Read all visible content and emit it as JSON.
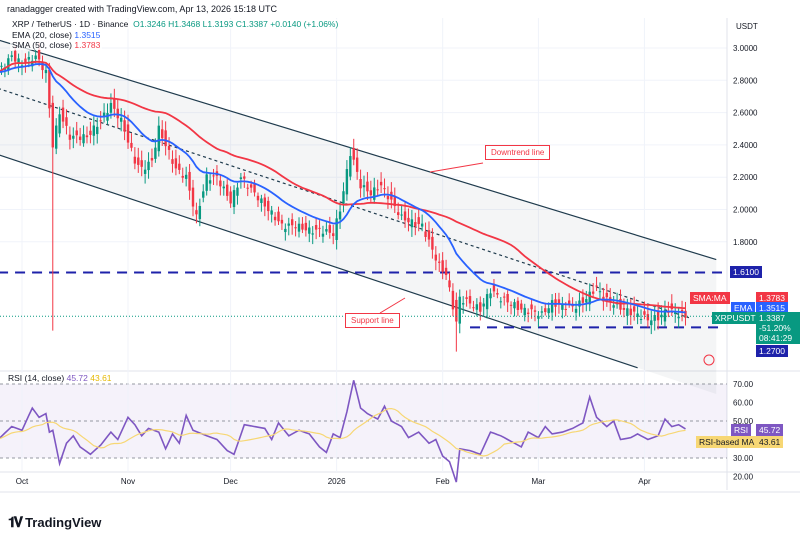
{
  "header": {
    "credit": "ranadagger created with TradingView.com, Apr 13, 2026 15:18 UTC",
    "symbol": "XRP / TetherUS · 1D · Binance",
    "o": "O1.3246",
    "h": "H1.3468",
    "l": "L1.3193",
    "c": "C1.3387",
    "chg": "+0.0140 (+1.06%)",
    "ema_label": "EMA (20, close)",
    "ema_val": "1.3515",
    "sma_label": "SMA (50, close)",
    "sma_val": "1.3783"
  },
  "axis": {
    "currency": "USDT",
    "price_ticks": [
      "3.0000",
      "2.8000",
      "2.6000",
      "2.4000",
      "2.2000",
      "2.0000",
      "1.8000"
    ],
    "rsi_ticks": [
      "70.00",
      "60.00",
      "50.00",
      "40.00",
      "30.00",
      "20.00"
    ],
    "months": [
      {
        "date": "2025-10-01",
        "label": "Oct"
      },
      {
        "date": "2025-11-01",
        "label": "Nov"
      },
      {
        "date": "2025-12-01",
        "label": "Dec"
      },
      {
        "date": "2026-01-01",
        "label": "2026"
      },
      {
        "date": "2026-02-01",
        "label": "Feb"
      },
      {
        "date": "2026-03-01",
        "label": "Mar"
      },
      {
        "date": "2026-04-01",
        "label": "Apr"
      }
    ]
  },
  "tags": {
    "level_high": "1.6100",
    "level_low": "1.2700",
    "sma_name": "SMA:MA",
    "sma_val": "1.3783",
    "ema_name": "EMA",
    "ema_val": "1.3515",
    "sym_name": "XRPUSDT",
    "price": "1.3387",
    "pct": "-51.20%",
    "countdown": "08:41:29",
    "rsi_name": "RSI",
    "rsi_val": "45.72",
    "rsima_name": "RSI-based MA",
    "rsima_val": "43.61"
  },
  "rsi_legend": {
    "label": "RSI (14, close)",
    "rsi": "45.72",
    "ma": "43.61"
  },
  "annotations": {
    "downtrend": "Downtrend line",
    "support": "Support line"
  },
  "footer": {
    "brand": "TradingView"
  },
  "colors": {
    "up": "#089981",
    "down": "#f23645",
    "ema": "#2962ff",
    "sma": "#f23645",
    "rsi": "#7e57c2",
    "rsi_ma": "#f7d774",
    "level": "#1e22aa",
    "channel": "#1f3b4d"
  },
  "chart_data": {
    "type": "candlestick",
    "ylim": [
      1.05,
      3.1
    ],
    "rsi_ylim": [
      13,
      78
    ],
    "channel": {
      "upper": [
        [
          "2025-09-24",
          3.05
        ],
        [
          "2026-04-22",
          1.69
        ]
      ],
      "lower": [
        [
          "2025-09-24",
          2.34
        ],
        [
          "2026-03-30",
          1.02
        ]
      ],
      "middle": [
        [
          "2025-09-24",
          2.75
        ],
        [
          "2026-04-14",
          1.33
        ]
      ]
    },
    "levels": [
      {
        "price": 1.61,
        "from": "2025-09-24"
      },
      {
        "price": 1.27,
        "from": "2026-02-09"
      }
    ],
    "close": [
      [
        "2025-09-24",
        2.85
      ],
      [
        "2025-09-28",
        2.95
      ],
      [
        "2025-10-01",
        2.9
      ],
      [
        "2025-10-05",
        2.95
      ],
      [
        "2025-10-08",
        2.85
      ],
      [
        "2025-10-10",
        2.4
      ],
      [
        "2025-10-12",
        2.6
      ],
      [
        "2025-10-15",
        2.45
      ],
      [
        "2025-10-20",
        2.45
      ],
      [
        "2025-10-24",
        2.55
      ],
      [
        "2025-10-27",
        2.65
      ],
      [
        "2025-10-30",
        2.55
      ],
      [
        "2025-11-03",
        2.3
      ],
      [
        "2025-11-05",
        2.25
      ],
      [
        "2025-11-08",
        2.3
      ],
      [
        "2025-11-10",
        2.5
      ],
      [
        "2025-11-12",
        2.4
      ],
      [
        "2025-11-15",
        2.25
      ],
      [
        "2025-11-18",
        2.2
      ],
      [
        "2025-11-21",
        1.95
      ],
      [
        "2025-11-24",
        2.2
      ],
      [
        "2025-11-27",
        2.2
      ],
      [
        "2025-12-01",
        2.05
      ],
      [
        "2025-12-04",
        2.2
      ],
      [
        "2025-12-08",
        2.1
      ],
      [
        "2025-12-12",
        2.0
      ],
      [
        "2025-12-16",
        1.9
      ],
      [
        "2025-12-20",
        1.9
      ],
      [
        "2025-12-24",
        1.87
      ],
      [
        "2025-12-28",
        1.87
      ],
      [
        "2025-12-31",
        1.85
      ],
      [
        "2026-01-02",
        2.0
      ],
      [
        "2026-01-05",
        2.35
      ],
      [
        "2026-01-06",
        2.3
      ],
      [
        "2026-01-08",
        2.15
      ],
      [
        "2026-01-11",
        2.1
      ],
      [
        "2026-01-14",
        2.15
      ],
      [
        "2026-01-17",
        2.05
      ],
      [
        "2026-01-20",
        1.95
      ],
      [
        "2026-01-23",
        1.92
      ],
      [
        "2026-01-26",
        1.9
      ],
      [
        "2026-01-29",
        1.75
      ],
      [
        "2026-01-31",
        1.65
      ],
      [
        "2026-02-02",
        1.6
      ],
      [
        "2026-02-05",
        1.3
      ],
      [
        "2026-02-06",
        1.45
      ],
      [
        "2026-02-09",
        1.42
      ],
      [
        "2026-02-12",
        1.38
      ],
      [
        "2026-02-15",
        1.5
      ],
      [
        "2026-02-18",
        1.45
      ],
      [
        "2026-02-21",
        1.42
      ],
      [
        "2026-02-24",
        1.38
      ],
      [
        "2026-02-27",
        1.37
      ],
      [
        "2026-03-02",
        1.35
      ],
      [
        "2026-03-05",
        1.42
      ],
      [
        "2026-03-09",
        1.4
      ],
      [
        "2026-03-12",
        1.4
      ],
      [
        "2026-03-15",
        1.45
      ],
      [
        "2026-03-18",
        1.52
      ],
      [
        "2026-03-20",
        1.45
      ],
      [
        "2026-03-23",
        1.42
      ],
      [
        "2026-03-26",
        1.38
      ],
      [
        "2026-03-30",
        1.35
      ],
      [
        "2026-04-02",
        1.32
      ],
      [
        "2026-04-05",
        1.33
      ],
      [
        "2026-04-08",
        1.38
      ],
      [
        "2026-04-10",
        1.36
      ],
      [
        "2026-04-13",
        1.3387
      ]
    ],
    "wicks": [
      [
        "2025-10-10",
        1.25
      ],
      [
        "2026-02-05",
        1.12
      ]
    ],
    "rsi": [
      [
        "2025-09-24",
        40
      ],
      [
        "2025-09-28",
        47
      ],
      [
        "2025-10-01",
        45
      ],
      [
        "2025-10-04",
        57
      ],
      [
        "2025-10-06",
        52
      ],
      [
        "2025-10-08",
        54
      ],
      [
        "2025-10-09",
        44
      ],
      [
        "2025-10-10",
        45
      ],
      [
        "2025-10-12",
        27
      ],
      [
        "2025-10-14",
        38
      ],
      [
        "2025-10-16",
        42
      ],
      [
        "2025-10-18",
        36
      ],
      [
        "2025-10-21",
        32
      ],
      [
        "2025-10-24",
        37
      ],
      [
        "2025-10-27",
        44
      ],
      [
        "2025-10-29",
        40
      ],
      [
        "2025-11-01",
        52
      ],
      [
        "2025-11-03",
        48
      ],
      [
        "2025-11-05",
        42
      ],
      [
        "2025-11-07",
        46
      ],
      [
        "2025-11-10",
        44
      ],
      [
        "2025-11-12",
        35
      ],
      [
        "2025-11-14",
        43
      ],
      [
        "2025-11-16",
        38
      ],
      [
        "2025-11-18",
        53
      ],
      [
        "2025-11-20",
        45
      ],
      [
        "2025-11-24",
        42
      ],
      [
        "2025-11-27",
        40
      ],
      [
        "2025-11-30",
        34
      ],
      [
        "2025-12-02",
        32
      ],
      [
        "2025-12-05",
        48
      ],
      [
        "2025-12-08",
        47
      ],
      [
        "2025-12-11",
        46
      ],
      [
        "2025-12-13",
        40
      ],
      [
        "2025-12-15",
        49
      ],
      [
        "2025-12-18",
        42
      ],
      [
        "2025-12-21",
        45
      ],
      [
        "2025-12-24",
        43
      ],
      [
        "2025-12-27",
        36
      ],
      [
        "2025-12-29",
        33
      ],
      [
        "2025-12-31",
        43
      ],
      [
        "2026-01-02",
        41
      ],
      [
        "2026-01-04",
        55
      ],
      [
        "2026-01-06",
        72
      ],
      [
        "2026-01-08",
        57
      ],
      [
        "2026-01-10",
        54
      ],
      [
        "2026-01-13",
        51
      ],
      [
        "2026-01-15",
        58
      ],
      [
        "2026-01-17",
        50
      ],
      [
        "2026-01-20",
        47
      ],
      [
        "2026-01-22",
        41
      ],
      [
        "2026-01-25",
        44
      ],
      [
        "2026-01-28",
        38
      ],
      [
        "2026-01-30",
        40
      ],
      [
        "2026-02-01",
        31
      ],
      [
        "2026-02-03",
        28
      ],
      [
        "2026-02-05",
        17
      ],
      [
        "2026-02-06",
        35
      ],
      [
        "2026-02-09",
        34
      ],
      [
        "2026-02-12",
        32
      ],
      [
        "2026-02-15",
        44
      ],
      [
        "2026-02-18",
        42
      ],
      [
        "2026-02-21",
        39
      ],
      [
        "2026-02-24",
        36
      ],
      [
        "2026-02-26",
        44
      ],
      [
        "2026-03-01",
        41
      ],
      [
        "2026-03-03",
        47
      ],
      [
        "2026-03-05",
        43
      ],
      [
        "2026-03-08",
        44
      ],
      [
        "2026-03-11",
        46
      ],
      [
        "2026-03-14",
        49
      ],
      [
        "2026-03-16",
        63
      ],
      [
        "2026-03-18",
        52
      ],
      [
        "2026-03-21",
        47
      ],
      [
        "2026-03-23",
        50
      ],
      [
        "2026-03-25",
        40
      ],
      [
        "2026-03-28",
        41
      ],
      [
        "2026-03-30",
        43
      ],
      [
        "2026-04-02",
        40
      ],
      [
        "2026-04-05",
        42
      ],
      [
        "2026-04-07",
        51
      ],
      [
        "2026-04-09",
        47
      ],
      [
        "2026-04-11",
        48
      ],
      [
        "2026-04-13",
        45.72
      ]
    ]
  }
}
